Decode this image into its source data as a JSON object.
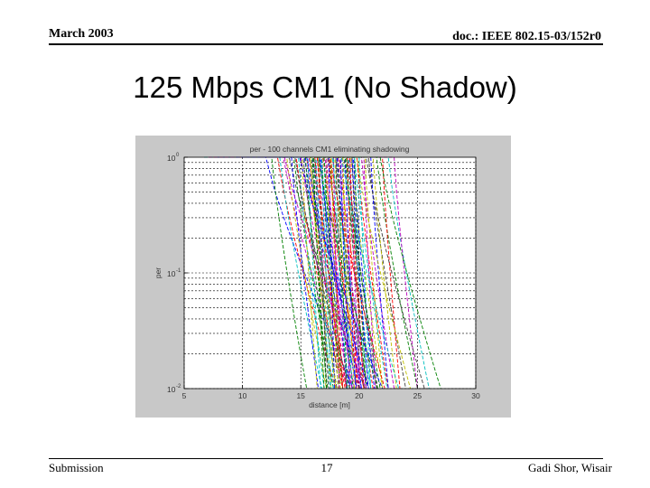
{
  "header": {
    "date": "March 2003",
    "doc": "doc.: IEEE 802.15-03/152r0"
  },
  "slide": {
    "title": "125 Mbps CM1 (No Shadow)"
  },
  "footer": {
    "left": "Submission",
    "page": "17",
    "author": "Gadi Shor, Wisair"
  },
  "colors": {
    "figure_bg": "#c8c8c8",
    "axes_bg": "#ffffff",
    "grid": "#000000"
  },
  "chart_data": {
    "type": "line",
    "title": "per - 100 channels CM1 eliminating shadowing",
    "xlabel": "distance [m]",
    "ylabel": "per",
    "x_ticks": [
      "5",
      "10",
      "15",
      "20",
      "25",
      "30"
    ],
    "y_ticks": [
      {
        "base": "10",
        "exp": "0",
        "value": 1
      },
      {
        "base": "10",
        "exp": "-1",
        "value": 0.1
      },
      {
        "base": "10",
        "exp": "-2",
        "value": 0.01
      }
    ],
    "xlim": [
      5,
      30
    ],
    "ylim": [
      0.01,
      1
    ],
    "yscale": "log",
    "grid": true,
    "line_style": "dashed",
    "series_count": 100,
    "palette": [
      "#0000ff",
      "#008000",
      "#ff0000",
      "#00bfbf",
      "#bf00bf",
      "#bfbf00",
      "#404040"
    ],
    "curve_model": "per = 1 at start distance, falling to 0.01 at end distance",
    "curve_spans_m": [
      [
        12.0,
        19.5
      ],
      [
        12.5,
        15.5
      ],
      [
        13.0,
        18.0
      ],
      [
        13.2,
        16.8
      ],
      [
        13.5,
        19.0
      ],
      [
        13.8,
        17.2
      ],
      [
        14.0,
        20.5
      ],
      [
        14.2,
        16.5
      ],
      [
        14.4,
        17.8
      ],
      [
        14.6,
        18.6
      ],
      [
        14.8,
        17.0
      ],
      [
        15.0,
        19.4
      ],
      [
        15.1,
        16.4
      ],
      [
        15.2,
        18.1
      ],
      [
        15.3,
        20.0
      ],
      [
        15.4,
        17.3
      ],
      [
        15.5,
        18.8
      ],
      [
        15.6,
        16.7
      ],
      [
        15.7,
        19.0
      ],
      [
        15.8,
        17.6
      ],
      [
        15.9,
        18.3
      ],
      [
        16.0,
        20.2
      ],
      [
        16.1,
        17.0
      ],
      [
        16.2,
        18.9
      ],
      [
        16.3,
        17.5
      ],
      [
        16.4,
        19.6
      ],
      [
        16.5,
        18.0
      ],
      [
        16.6,
        17.2
      ],
      [
        16.7,
        19.2
      ],
      [
        16.8,
        18.4
      ],
      [
        16.9,
        20.4
      ],
      [
        17.0,
        17.8
      ],
      [
        17.1,
        19.0
      ],
      [
        17.2,
        18.2
      ],
      [
        17.3,
        20.8
      ],
      [
        17.4,
        17.9
      ],
      [
        17.5,
        19.5
      ],
      [
        17.6,
        18.6
      ],
      [
        17.7,
        21.0
      ],
      [
        17.8,
        18.3
      ],
      [
        17.9,
        19.8
      ],
      [
        18.0,
        18.9
      ],
      [
        18.1,
        20.2
      ],
      [
        18.2,
        19.0
      ],
      [
        18.3,
        21.2
      ],
      [
        18.4,
        19.4
      ],
      [
        18.5,
        20.0
      ],
      [
        18.6,
        19.2
      ],
      [
        18.7,
        21.5
      ],
      [
        18.8,
        19.7
      ],
      [
        18.9,
        20.6
      ],
      [
        19.0,
        19.8
      ],
      [
        19.1,
        21.0
      ],
      [
        19.2,
        20.1
      ],
      [
        19.3,
        22.0
      ],
      [
        19.4,
        20.4
      ],
      [
        19.5,
        21.3
      ],
      [
        19.6,
        20.6
      ],
      [
        19.8,
        22.5
      ],
      [
        20.0,
        21.0
      ],
      [
        20.2,
        23.0
      ],
      [
        20.5,
        22.0
      ],
      [
        20.8,
        24.0
      ],
      [
        21.0,
        22.5
      ],
      [
        21.5,
        25.0
      ],
      [
        22.0,
        23.5
      ],
      [
        22.5,
        26.0
      ],
      [
        23.0,
        25.0
      ],
      [
        15.8,
        18.0
      ],
      [
        16.2,
        17.4
      ],
      [
        16.6,
        19.8
      ],
      [
        17.0,
        18.6
      ],
      [
        17.4,
        20.0
      ],
      [
        17.8,
        19.0
      ],
      [
        18.2,
        20.6
      ],
      [
        18.6,
        19.6
      ],
      [
        19.0,
        21.6
      ],
      [
        19.4,
        20.8
      ],
      [
        16.0,
        17.2
      ],
      [
        16.4,
        18.6
      ],
      [
        16.8,
        17.6
      ],
      [
        17.2,
        19.4
      ],
      [
        17.6,
        18.4
      ],
      [
        18.0,
        20.4
      ],
      [
        18.4,
        19.2
      ],
      [
        18.8,
        21.8
      ],
      [
        19.2,
        20.4
      ],
      [
        19.6,
        22.4
      ],
      [
        20.4,
        21.4
      ],
      [
        21.2,
        23.2
      ],
      [
        14.5,
        19.2
      ],
      [
        15.5,
        20.8
      ],
      [
        16.5,
        21.6
      ],
      [
        17.5,
        22.2
      ],
      [
        18.5,
        23.4
      ],
      [
        13.6,
        20.6
      ],
      [
        19.8,
        24.4
      ],
      [
        20.6,
        25.6
      ],
      [
        14.9,
        22.0
      ],
      [
        21.8,
        27.0
      ]
    ]
  }
}
